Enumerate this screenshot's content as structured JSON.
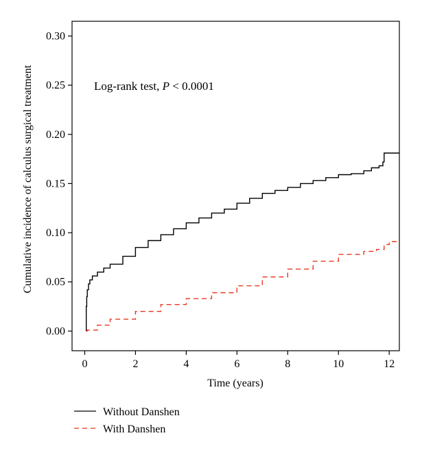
{
  "chart_data": {
    "type": "line",
    "title": "",
    "xlabel": "Time (years)",
    "ylabel": "Cumulative incidence of calculus surgical treatment",
    "xlim": [
      -0.5,
      12.4
    ],
    "ylim": [
      -0.02,
      0.315
    ],
    "xticks": [
      0,
      2,
      4,
      6,
      8,
      10,
      12
    ],
    "yticks": [
      0.0,
      0.05,
      0.1,
      0.15,
      0.2,
      0.25,
      0.3
    ],
    "ytick_labels": [
      "0.00",
      "0.05",
      "0.10",
      "0.15",
      "0.20",
      "0.25",
      "0.30"
    ],
    "annotation": {
      "prefix": "Log-rank test, ",
      "italic": "P",
      "suffix": " < 0.0001"
    },
    "grid": false,
    "legend_position": "bottom-left",
    "series": [
      {
        "name": "Without Danshen",
        "color": "#000000",
        "dash": "solid",
        "step": true,
        "x": [
          0.05,
          0.06,
          0.08,
          0.1,
          0.15,
          0.2,
          0.3,
          0.5,
          0.75,
          1.0,
          1.5,
          2.0,
          2.5,
          3.0,
          3.5,
          4.0,
          4.5,
          5.0,
          5.5,
          6.0,
          6.5,
          7.0,
          7.5,
          8.0,
          8.5,
          9.0,
          9.5,
          10.0,
          10.5,
          11.0,
          11.3,
          11.6,
          11.75,
          11.8,
          12.4
        ],
        "y": [
          0.0,
          0.025,
          0.035,
          0.042,
          0.048,
          0.052,
          0.056,
          0.06,
          0.064,
          0.068,
          0.076,
          0.085,
          0.092,
          0.098,
          0.104,
          0.11,
          0.115,
          0.12,
          0.124,
          0.13,
          0.135,
          0.14,
          0.143,
          0.146,
          0.15,
          0.153,
          0.156,
          0.159,
          0.16,
          0.163,
          0.166,
          0.168,
          0.172,
          0.181,
          0.181
        ]
      },
      {
        "name": "With Danshen",
        "color": "#e8361f",
        "dash": "dashed",
        "step": true,
        "x": [
          0.05,
          0.1,
          0.5,
          1.0,
          2.0,
          3.0,
          4.0,
          5.0,
          6.0,
          7.0,
          8.0,
          9.0,
          10.0,
          11.0,
          11.5,
          11.8,
          12.0,
          12.4
        ],
        "y": [
          0.0,
          0.001,
          0.006,
          0.012,
          0.02,
          0.027,
          0.033,
          0.039,
          0.046,
          0.055,
          0.063,
          0.071,
          0.078,
          0.081,
          0.083,
          0.088,
          0.091,
          0.091
        ]
      }
    ]
  }
}
